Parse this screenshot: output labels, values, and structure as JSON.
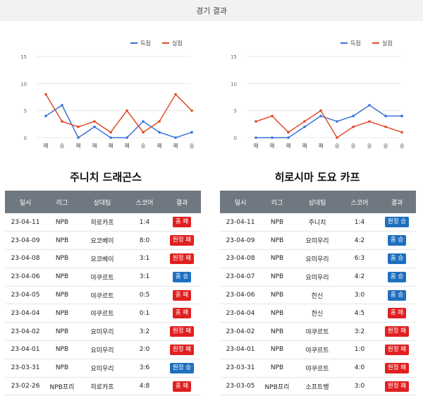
{
  "page_title": "경기 결과",
  "colors": {
    "score": "#3b73d6",
    "concede": "#e04b2b",
    "header_bg": "#6f7880",
    "win": "#1f6fbf",
    "loss": "#e02020"
  },
  "legend": {
    "score": "득점",
    "concede": "실점"
  },
  "chart_data": [
    {
      "type": "line",
      "categories": [
        "패",
        "승",
        "패",
        "패",
        "패",
        "패",
        "승",
        "패",
        "패",
        "승"
      ],
      "series": [
        {
          "name": "득점",
          "values": [
            4,
            6,
            0,
            2,
            0,
            0,
            3,
            1,
            0,
            1
          ]
        },
        {
          "name": "실점",
          "values": [
            8,
            3,
            2,
            3,
            1,
            5,
            1,
            3,
            8,
            5
          ]
        }
      ],
      "ylim": [
        0,
        15
      ],
      "yticks": [
        0,
        5,
        10,
        15
      ],
      "legend_position": "top-right",
      "grid": true
    },
    {
      "type": "line",
      "categories": [
        "패",
        "패",
        "패",
        "패",
        "패",
        "승",
        "승",
        "승",
        "승",
        "승"
      ],
      "series": [
        {
          "name": "득점",
          "values": [
            0,
            0,
            0,
            2,
            4,
            3,
            4,
            6,
            4,
            4
          ]
        },
        {
          "name": "실점",
          "values": [
            3,
            4,
            1,
            3,
            5,
            0,
            2,
            3,
            2,
            1
          ]
        }
      ],
      "ylim": [
        0,
        15
      ],
      "yticks": [
        0,
        5,
        10,
        15
      ],
      "legend_position": "top-right",
      "grid": true
    }
  ],
  "teams": [
    {
      "name": "주니치 드래곤스",
      "headers": [
        "일시",
        "리그",
        "상대팀",
        "스코어",
        "결과"
      ],
      "rows": [
        {
          "date": "23-04-11",
          "league": "NPB",
          "opponent": "히로카프",
          "score": "1:4",
          "result": "홈 패",
          "win": false
        },
        {
          "date": "23-04-09",
          "league": "NPB",
          "opponent": "요코베이",
          "score": "8:0",
          "result": "원정 패",
          "win": false
        },
        {
          "date": "23-04-08",
          "league": "NPB",
          "opponent": "요코베이",
          "score": "3:1",
          "result": "원정 패",
          "win": false
        },
        {
          "date": "23-04-06",
          "league": "NPB",
          "opponent": "야쿠르트",
          "score": "3:1",
          "result": "홈 승",
          "win": true
        },
        {
          "date": "23-04-05",
          "league": "NPB",
          "opponent": "야쿠르트",
          "score": "0:5",
          "result": "홈 패",
          "win": false
        },
        {
          "date": "23-04-04",
          "league": "NPB",
          "opponent": "야쿠르트",
          "score": "0:1",
          "result": "홈 패",
          "win": false
        },
        {
          "date": "23-04-02",
          "league": "NPB",
          "opponent": "요미우리",
          "score": "3:2",
          "result": "원정 패",
          "win": false
        },
        {
          "date": "23-04-01",
          "league": "NPB",
          "opponent": "요미우리",
          "score": "2:0",
          "result": "원정 패",
          "win": false
        },
        {
          "date": "23-03-31",
          "league": "NPB",
          "opponent": "요미우리",
          "score": "3:6",
          "result": "원정 승",
          "win": true
        },
        {
          "date": "23-02-26",
          "league": "NPB프리",
          "opponent": "히로카프",
          "score": "4:8",
          "result": "홈 패",
          "win": false
        }
      ]
    },
    {
      "name": "히로시마 도요 카프",
      "headers": [
        "일시",
        "리그",
        "상대팀",
        "스코어",
        "결과"
      ],
      "rows": [
        {
          "date": "23-04-11",
          "league": "NPB",
          "opponent": "주니치",
          "score": "1:4",
          "result": "원정 승",
          "win": true
        },
        {
          "date": "23-04-09",
          "league": "NPB",
          "opponent": "요미우리",
          "score": "4:2",
          "result": "홈 승",
          "win": true
        },
        {
          "date": "23-04-08",
          "league": "NPB",
          "opponent": "요미우리",
          "score": "6:3",
          "result": "홈 승",
          "win": true
        },
        {
          "date": "23-04-07",
          "league": "NPB",
          "opponent": "요미우리",
          "score": "4:2",
          "result": "홈 승",
          "win": true
        },
        {
          "date": "23-04-06",
          "league": "NPB",
          "opponent": "한신",
          "score": "3:0",
          "result": "홈 승",
          "win": true
        },
        {
          "date": "23-04-04",
          "league": "NPB",
          "opponent": "한신",
          "score": "4:5",
          "result": "홈 패",
          "win": false
        },
        {
          "date": "23-04-02",
          "league": "NPB",
          "opponent": "야쿠르트",
          "score": "3:2",
          "result": "원정 패",
          "win": false
        },
        {
          "date": "23-04-01",
          "league": "NPB",
          "opponent": "야쿠르트",
          "score": "1:0",
          "result": "원정 패",
          "win": false
        },
        {
          "date": "23-03-31",
          "league": "NPB",
          "opponent": "야쿠르트",
          "score": "4:0",
          "result": "원정 패",
          "win": false
        },
        {
          "date": "23-03-05",
          "league": "NPB프리",
          "opponent": "소프트뱅",
          "score": "3:0",
          "result": "원정 패",
          "win": false
        }
      ]
    }
  ]
}
